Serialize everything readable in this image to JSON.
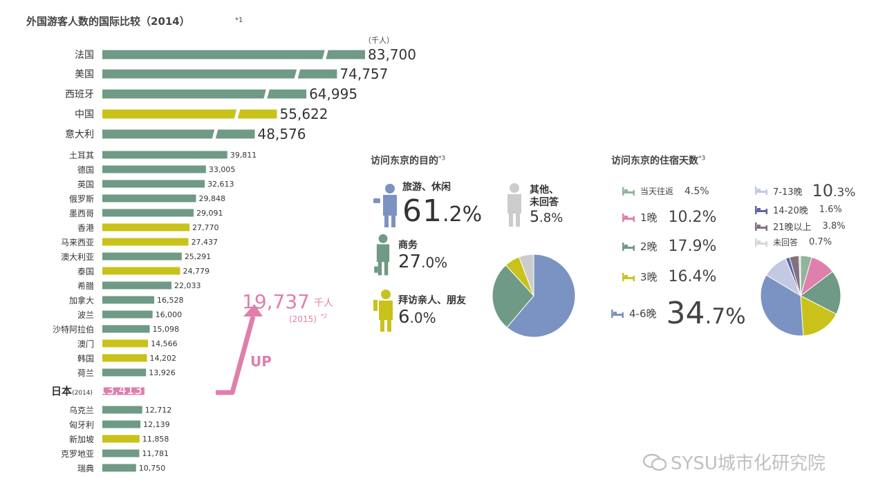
{
  "chart_data": [
    {
      "type": "bar",
      "title": "外国游客人数的国际比较（2014）",
      "title_note": "*1",
      "unit_label": "（千人）",
      "categories": [
        "法国",
        "美国",
        "西班牙",
        "中国",
        "意大利",
        "土耳其",
        "德国",
        "英国",
        "俄罗斯",
        "墨西哥",
        "香港",
        "马来西亚",
        "澳大利亚",
        "泰国",
        "希腊",
        "加拿大",
        "波兰",
        "沙特阿拉伯",
        "澳门",
        "韩国",
        "荷兰",
        "日本",
        "乌克兰",
        "匈牙利",
        "新加坡",
        "克罗地亚",
        "瑞典"
      ],
      "values": [
        83700,
        74757,
        64995,
        55622,
        48576,
        39811,
        33005,
        32613,
        29848,
        29091,
        27770,
        27437,
        25291,
        24779,
        22033,
        16528,
        16000,
        15098,
        14566,
        14202,
        13926,
        13413,
        12712,
        12139,
        11858,
        11781,
        10750
      ],
      "value_labels": [
        "83,700",
        "74,757",
        "64,995",
        "55,622",
        "48,576",
        "39,811",
        "33,005",
        "32,613",
        "29,848",
        "29,091",
        "27,770",
        "27,437",
        "25,291",
        "24,779",
        "22,033",
        "16,528",
        "16,000",
        "15,098",
        "14,566",
        "14,202",
        "13,926",
        "13,413",
        "12,712",
        "12,139",
        "11,858",
        "11,781",
        "10,750"
      ],
      "groups": [
        "other",
        "other",
        "other",
        "asia",
        "other",
        "other",
        "other",
        "other",
        "other",
        "other",
        "asia",
        "asia",
        "other",
        "asia",
        "other",
        "other",
        "other",
        "other",
        "asia",
        "asia",
        "other",
        "japan",
        "other",
        "other",
        "asia",
        "other",
        "other"
      ],
      "japan_suffix": "(2014)",
      "colors": {
        "other": "#6f9a85",
        "asia": "#c9c21a",
        "japan": "#df7fab"
      },
      "callout": {
        "value": "19,737",
        "unit": "千人",
        "year": "(2015)",
        "note": "*2",
        "label": "UP",
        "color": "#df7fab"
      }
    },
    {
      "type": "pie",
      "title": "访问东京的目的",
      "title_note": "*3",
      "labels": [
        "旅游、休闲",
        "商务",
        "拜访亲人、朋友",
        "其他、未回答"
      ],
      "values": [
        61.2,
        27.0,
        6.0,
        5.8
      ],
      "display": [
        {
          "name": "旅游、休闲",
          "int": "61",
          "dec": ".2%",
          "color": "#7b93c2"
        },
        {
          "name": "商务",
          "int": "27",
          "dec": ".0%",
          "color": "#6f9a85"
        },
        {
          "name": "拜访亲人、朋友",
          "int": "6",
          "dec": ".0%",
          "color": "#c9c21a"
        },
        {
          "name": "其他、未回答",
          "name_l1": "其他、",
          "name_l2": "未回答",
          "int": "5",
          "dec": ".8%",
          "color": "#cccccc"
        }
      ]
    },
    {
      "type": "pie",
      "title": "访问东京的住宿天数",
      "title_note": "*3",
      "labels": [
        "当天往返",
        "1晚",
        "2晚",
        "3晚",
        "4-6晚",
        "7-13晚",
        "14-20晚",
        "21晚以上",
        "未回答"
      ],
      "values": [
        4.5,
        10.2,
        17.9,
        16.4,
        34.7,
        10.3,
        1.6,
        3.8,
        0.7
      ],
      "display": [
        {
          "name": "当天往返",
          "pct": "4.5%",
          "color": "#8fb59a"
        },
        {
          "name": "1晚",
          "pct": "10.2%",
          "color": "#df7fab"
        },
        {
          "name": "2晚",
          "pct": "17.9%",
          "color": "#6f9a85"
        },
        {
          "name": "3晚",
          "pct": "16.4%",
          "color": "#c9c21a"
        },
        {
          "name": "4-6晚",
          "int": "34",
          "dec": ".7%",
          "color": "#7b93c2"
        },
        {
          "name": "7-13晚",
          "int": "10",
          "dec": ".3%",
          "color": "#c3c9e3"
        },
        {
          "name": "14-20晚",
          "pct": "1.6%",
          "color": "#5e63a3"
        },
        {
          "name": "21晚以上",
          "pct": "3.8%",
          "color": "#857080"
        },
        {
          "name": "未回答",
          "pct": "0.7%",
          "color": "#d6d6d6"
        }
      ]
    }
  ],
  "watermark": "SYSU城市化研究院",
  "icons": [
    "tourist-icon",
    "business-icon",
    "visiting-icon",
    "other-person-icon",
    "bed-icon",
    "wechat-icon"
  ]
}
